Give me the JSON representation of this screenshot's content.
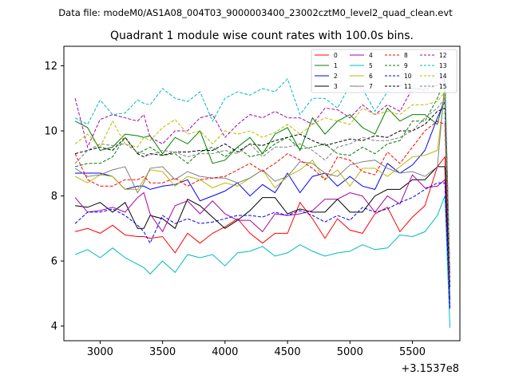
{
  "suptitle": "Data file: modeM0/AS1A08_004T03_9000003400_23002cztM0_level2_quad_clean.evt",
  "chart_data": {
    "type": "line",
    "title": "Quadrant 1 module wise count rates with 100.0s bins.",
    "xlabel": "",
    "ylabel": "",
    "x_offset_label": "+3.1537e8",
    "xlim": [
      2710,
      5880
    ],
    "ylim": [
      3.55,
      12.6
    ],
    "xticks": [
      3000,
      3500,
      4000,
      4500,
      5000,
      5500
    ],
    "yticks": [
      4,
      6,
      8,
      10,
      12
    ],
    "grid": false,
    "legend_position": "top-right",
    "x": [
      2800,
      2900,
      3000,
      3100,
      3200,
      3300,
      3350,
      3400,
      3500,
      3600,
      3700,
      3800,
      3900,
      4000,
      4100,
      4200,
      4300,
      4400,
      4500,
      4600,
      4700,
      4800,
      4900,
      5000,
      5100,
      5200,
      5300,
      5400,
      5500,
      5600,
      5700,
      5760,
      5800
    ],
    "series": [
      {
        "name": "0",
        "color": "#ff0000",
        "dash": "solid",
        "values": [
          6.9,
          7.0,
          6.85,
          7.1,
          6.8,
          6.75,
          6.75,
          6.7,
          6.75,
          6.25,
          6.85,
          6.55,
          6.85,
          7.05,
          7.3,
          6.85,
          6.55,
          6.85,
          6.85,
          7.8,
          7.3,
          6.7,
          7.3,
          6.95,
          6.85,
          7.45,
          7.65,
          6.9,
          7.35,
          7.7,
          8.9,
          9.2,
          5.4
        ]
      },
      {
        "name": "1",
        "color": "#008000",
        "dash": "solid",
        "values": [
          10.3,
          10.1,
          9.4,
          9.5,
          9.9,
          9.85,
          9.8,
          9.85,
          9.3,
          9.8,
          9.6,
          10.0,
          9.0,
          9.1,
          9.5,
          9.8,
          9.3,
          9.9,
          10.1,
          9.4,
          10.4,
          9.9,
          10.3,
          10.5,
          10.1,
          9.9,
          10.7,
          10.3,
          10.5,
          10.5,
          10.2,
          11.1,
          5.2
        ]
      },
      {
        "name": "2",
        "color": "#0000ff",
        "dash": "solid",
        "values": [
          8.7,
          8.7,
          8.7,
          8.6,
          8.2,
          8.3,
          8.3,
          8.2,
          8.3,
          8.35,
          8.5,
          7.85,
          8.0,
          8.15,
          8.4,
          8.0,
          8.35,
          8.1,
          8.7,
          8.1,
          8.6,
          8.7,
          8.3,
          8.6,
          8.3,
          8.2,
          9.0,
          8.7,
          8.95,
          9.4,
          10.4,
          10.9,
          5.3
        ]
      },
      {
        "name": "3",
        "color": "#000000",
        "dash": "solid",
        "values": [
          7.7,
          7.65,
          7.8,
          7.5,
          7.8,
          7.0,
          7.0,
          7.4,
          7.3,
          7.0,
          7.9,
          7.7,
          7.35,
          7.0,
          7.25,
          7.55,
          7.95,
          7.95,
          7.45,
          7.6,
          7.5,
          7.5,
          7.9,
          7.5,
          7.5,
          8.0,
          8.2,
          8.2,
          8.5,
          8.5,
          8.9,
          8.9,
          4.8
        ]
      },
      {
        "name": "4",
        "color": "#aa00aa",
        "dash": "solid",
        "values": [
          7.95,
          7.5,
          7.55,
          7.65,
          7.5,
          7.95,
          8.1,
          7.45,
          6.9,
          7.7,
          7.85,
          7.45,
          7.85,
          7.45,
          7.25,
          7.25,
          6.9,
          7.45,
          7.4,
          7.45,
          7.55,
          7.9,
          7.9,
          8.1,
          8.0,
          7.5,
          8.0,
          7.75,
          8.65,
          8.25,
          8.3,
          8.5,
          4.6
        ]
      },
      {
        "name": "5",
        "color": "#00bbbb",
        "dash": "solid",
        "values": [
          6.2,
          6.35,
          6.1,
          6.4,
          6.1,
          5.9,
          5.8,
          5.6,
          6.0,
          5.65,
          6.2,
          6.1,
          6.2,
          5.85,
          6.25,
          6.3,
          6.45,
          6.15,
          6.25,
          6.5,
          6.3,
          6.15,
          6.25,
          6.3,
          6.5,
          6.35,
          6.4,
          6.8,
          6.75,
          6.9,
          7.4,
          8.0,
          3.95
        ]
      },
      {
        "name": "6",
        "color": "#bbbb00",
        "dash": "solid",
        "values": [
          8.6,
          8.4,
          8.65,
          8.6,
          8.2,
          8.2,
          8.5,
          8.8,
          8.75,
          8.3,
          8.6,
          8.5,
          8.25,
          8.4,
          8.3,
          8.55,
          8.8,
          8.25,
          8.6,
          8.8,
          9.1,
          8.5,
          8.8,
          8.3,
          8.85,
          8.85,
          8.6,
          8.9,
          9.2,
          9.25,
          9.4,
          11.2,
          5.5
        ]
      },
      {
        "name": "7",
        "color": "#808080",
        "dash": "solid",
        "values": [
          8.85,
          8.6,
          8.65,
          8.8,
          8.9,
          8.1,
          8.4,
          8.85,
          8.9,
          8.5,
          8.75,
          8.6,
          8.55,
          8.55,
          8.4,
          8.55,
          8.8,
          8.45,
          8.6,
          9.05,
          9.0,
          8.7,
          8.6,
          8.95,
          9.05,
          9.1,
          8.85,
          8.7,
          8.75,
          8.6,
          8.9,
          11.5,
          5.6
        ]
      },
      {
        "name": "8",
        "color": "#ff0000",
        "dash": "dashed",
        "values": [
          9.3,
          8.5,
          8.3,
          8.3,
          8.5,
          8.5,
          8.6,
          8.4,
          8.4,
          8.55,
          8.3,
          8.5,
          8.55,
          8.6,
          8.8,
          9.0,
          8.75,
          9.0,
          9.3,
          9.1,
          8.85,
          8.5,
          9.2,
          9.1,
          8.75,
          8.65,
          9.35,
          9.0,
          9.5,
          10.0,
          10.3,
          10.2,
          5.3
        ]
      },
      {
        "name": "9",
        "color": "#008000",
        "dash": "dashed",
        "values": [
          8.9,
          9.0,
          9.0,
          9.2,
          9.8,
          9.3,
          9.4,
          9.5,
          9.25,
          9.3,
          9.0,
          9.35,
          9.5,
          9.2,
          9.5,
          9.2,
          9.3,
          9.6,
          9.8,
          9.45,
          9.5,
          9.6,
          9.3,
          9.25,
          9.5,
          9.3,
          9.6,
          9.7,
          10.3,
          10.3,
          11.0,
          11.6,
          5.4
        ]
      },
      {
        "name": "10",
        "color": "#0000ff",
        "dash": "dashed",
        "values": [
          7.15,
          7.5,
          7.5,
          7.6,
          7.4,
          7.1,
          6.9,
          6.55,
          7.4,
          7.15,
          7.3,
          7.15,
          7.2,
          7.3,
          7.4,
          7.4,
          7.35,
          7.5,
          7.4,
          7.55,
          7.4,
          7.2,
          7.4,
          7.25,
          7.65,
          7.5,
          7.6,
          7.8,
          7.95,
          8.2,
          8.4,
          8.4,
          4.5
        ]
      },
      {
        "name": "11",
        "color": "#000000",
        "dash": "dashed",
        "values": [
          9.3,
          9.4,
          9.5,
          9.4,
          9.8,
          9.3,
          9.2,
          9.3,
          9.25,
          9.35,
          9.35,
          9.4,
          9.4,
          9.6,
          9.35,
          9.6,
          9.55,
          9.7,
          9.8,
          9.9,
          9.7,
          9.55,
          9.65,
          9.75,
          9.7,
          9.85,
          9.8,
          10.0,
          10.0,
          10.2,
          10.6,
          10.7,
          5.2
        ]
      },
      {
        "name": "12",
        "color": "#aa00aa",
        "dash": "dashed",
        "values": [
          11.0,
          9.5,
          10.35,
          10.5,
          10.4,
          10.3,
          10.5,
          9.8,
          9.6,
          10.0,
          10.0,
          10.4,
          10.5,
          9.8,
          10.2,
          10.5,
          10.4,
          10.6,
          10.4,
          10.4,
          10.2,
          10.7,
          10.65,
          10.4,
          10.8,
          10.5,
          10.8,
          10.6,
          11.3,
          11.25,
          11.4,
          11.6,
          5.5
        ]
      },
      {
        "name": "13",
        "color": "#00bbbb",
        "dash": "dashed",
        "values": [
          10.4,
          10.2,
          10.95,
          10.5,
          10.55,
          10.95,
          10.85,
          10.8,
          11.3,
          11.0,
          10.9,
          11.2,
          10.3,
          11.0,
          11.2,
          11.1,
          11.3,
          11.2,
          11.6,
          10.5,
          11.0,
          11.0,
          10.7,
          11.4,
          11.3,
          10.6,
          11.2,
          11.4,
          11.3,
          11.3,
          11.8,
          11.9,
          5.5
        ]
      },
      {
        "name": "14",
        "color": "#bbbb00",
        "dash": "dashed",
        "values": [
          9.6,
          9.9,
          9.5,
          10.3,
          9.6,
          9.5,
          9.8,
          9.7,
          10.1,
          10.35,
          9.9,
          10.0,
          9.6,
          10.0,
          9.9,
          10.0,
          9.8,
          9.95,
          10.2,
          9.9,
          10.2,
          10.4,
          10.3,
          10.2,
          10.7,
          10.5,
          10.6,
          10.5,
          10.8,
          10.8,
          10.9,
          11.2,
          5.4
        ]
      },
      {
        "name": "15",
        "color": "#808080",
        "dash": "dashed",
        "values": [
          9.0,
          9.4,
          9.6,
          9.55,
          9.6,
          9.35,
          9.3,
          9.25,
          9.4,
          9.35,
          9.2,
          9.3,
          9.3,
          9.4,
          9.3,
          9.6,
          9.2,
          9.5,
          9.5,
          9.6,
          9.4,
          9.1,
          9.5,
          9.6,
          9.8,
          9.7,
          9.7,
          9.8,
          10.0,
          10.4,
          10.7,
          11.0,
          5.2
        ]
      }
    ]
  }
}
